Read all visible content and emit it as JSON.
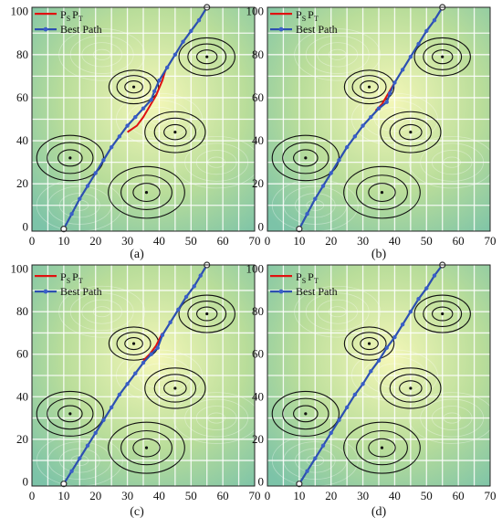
{
  "colors": {
    "bg_light": "#f4f7b8",
    "bg_mid": "#b9dd9a",
    "bg_dark": "#7cc3a8",
    "grid": "#ffffff",
    "threat": "#111111",
    "ps_pt_line": "#e01010",
    "best_path_line": "#2c4fb0",
    "best_path_marker": "#3a5fc8"
  },
  "legend": {
    "ps_pt_sub_s": "S",
    "ps_pt_sub_t": "T",
    "ps_pt_prefix": "P",
    "best_path": "Best Path"
  },
  "chart_data": [
    {
      "type": "line",
      "panel_label": "(a)",
      "xlim": [
        0,
        70
      ],
      "ylim": [
        -2,
        102
      ],
      "x_ticks": [
        0,
        10,
        20,
        30,
        40,
        50,
        60,
        70
      ],
      "y_ticks": [
        0,
        20,
        40,
        60,
        80,
        100
      ],
      "grid": true,
      "legend_position": "top-left",
      "threats": [
        {
          "center": [
            12,
            32
          ],
          "radii": [
            3.8,
            7.2,
            10.5
          ]
        },
        {
          "center": [
            32,
            65
          ],
          "radii": [
            2.8,
            5.3,
            7.8
          ]
        },
        {
          "center": [
            45,
            44
          ],
          "radii": [
            3.5,
            6.5,
            9.5
          ]
        },
        {
          "center": [
            55,
            79
          ],
          "radii": [
            3.2,
            6,
            8.8
          ]
        },
        {
          "center": [
            36,
            16
          ],
          "radii": [
            4.2,
            8,
            12
          ]
        }
      ],
      "start": [
        10,
        -1
      ],
      "goal": [
        55,
        102
      ],
      "series": [
        {
          "name": "PS PT",
          "x": [
            30,
            33,
            35,
            37,
            39,
            41,
            42
          ],
          "y": [
            44,
            47,
            51,
            56,
            61,
            68,
            73
          ]
        },
        {
          "name": "Best Path",
          "x": [
            10,
            12.5,
            15,
            17.5,
            20,
            22.5,
            25,
            27.5,
            30,
            32.5,
            35,
            37.5,
            38.5,
            40,
            42.5,
            45,
            47.5,
            50,
            52.5,
            55
          ],
          "y": [
            -1,
            6,
            13,
            19,
            25,
            31,
            37,
            42,
            47,
            51,
            55,
            59,
            63,
            68,
            74,
            80,
            86,
            91,
            96,
            102
          ]
        }
      ]
    },
    {
      "type": "line",
      "panel_label": "(b)",
      "xlim": [
        0,
        70
      ],
      "ylim": [
        -2,
        102
      ],
      "x_ticks": [
        0,
        10,
        20,
        30,
        40,
        50,
        60,
        70
      ],
      "y_ticks": [
        0,
        20,
        40,
        60,
        80,
        100
      ],
      "grid": true,
      "legend_position": "top-left",
      "threats": [
        {
          "center": [
            12,
            32
          ],
          "radii": [
            3.8,
            7.2,
            10.5
          ]
        },
        {
          "center": [
            32,
            65
          ],
          "radii": [
            2.8,
            5.3,
            7.8
          ]
        },
        {
          "center": [
            45,
            44
          ],
          "radii": [
            3.5,
            6.5,
            9.5
          ]
        },
        {
          "center": [
            55,
            79
          ],
          "radii": [
            3.2,
            6,
            8.8
          ]
        },
        {
          "center": [
            36,
            16
          ],
          "radii": [
            4.2,
            8,
            12
          ]
        }
      ],
      "start": [
        10,
        -1
      ],
      "goal": [
        55,
        102
      ],
      "series": [
        {
          "name": "PS PT",
          "x": [
            34,
            36,
            38,
            40
          ],
          "y": [
            54,
            57,
            62,
            67
          ]
        },
        {
          "name": "Best Path",
          "x": [
            10,
            12.5,
            15,
            17.5,
            20,
            22.5,
            25,
            27.5,
            30,
            32.5,
            35,
            37.5,
            38.5,
            40,
            42.5,
            45,
            47.5,
            50,
            52.5,
            55
          ],
          "y": [
            -1,
            6,
            13,
            19,
            25,
            31,
            37,
            42,
            47,
            51,
            55,
            58,
            62,
            67,
            73,
            79,
            85,
            91,
            96,
            102
          ]
        }
      ]
    },
    {
      "type": "line",
      "panel_label": "(c)",
      "xlim": [
        0,
        70
      ],
      "ylim": [
        -2,
        102
      ],
      "x_ticks": [
        0,
        10,
        20,
        30,
        40,
        50,
        60,
        70
      ],
      "y_ticks": [
        0,
        20,
        40,
        60,
        80,
        100
      ],
      "grid": true,
      "legend_position": "top-left",
      "threats": [
        {
          "center": [
            12,
            32
          ],
          "radii": [
            3.8,
            7.2,
            10.5
          ]
        },
        {
          "center": [
            32,
            65
          ],
          "radii": [
            2.8,
            5.3,
            7.8
          ]
        },
        {
          "center": [
            45,
            44
          ],
          "radii": [
            3.5,
            6.5,
            9.5
          ]
        },
        {
          "center": [
            55,
            79
          ],
          "radii": [
            3.2,
            6,
            8.8
          ]
        },
        {
          "center": [
            36,
            16
          ],
          "radii": [
            4.2,
            8,
            12
          ]
        }
      ],
      "start": [
        10,
        -1
      ],
      "goal": [
        55,
        102
      ],
      "series": [
        {
          "name": "PS PT",
          "x": [
            35,
            37,
            39,
            41
          ],
          "y": [
            57,
            60,
            64,
            70
          ]
        },
        {
          "name": "Best Path",
          "x": [
            10,
            12.5,
            15,
            17.5,
            20,
            22.5,
            25,
            27.5,
            30,
            32.5,
            35,
            37.5,
            39.5,
            41,
            43.5,
            46,
            48.5,
            51,
            53,
            55
          ],
          "y": [
            -1,
            5,
            11,
            17,
            23,
            29,
            35,
            41,
            46,
            51,
            56,
            60,
            63,
            69,
            75,
            81,
            87,
            92,
            97,
            102
          ]
        }
      ]
    },
    {
      "type": "line",
      "panel_label": "(d)",
      "xlim": [
        0,
        70
      ],
      "ylim": [
        -2,
        102
      ],
      "x_ticks": [
        0,
        10,
        20,
        30,
        40,
        50,
        60,
        70
      ],
      "y_ticks": [
        0,
        20,
        40,
        60,
        80,
        100
      ],
      "grid": true,
      "legend_position": "top-left",
      "threats": [
        {
          "center": [
            12,
            32
          ],
          "radii": [
            3.8,
            7.2,
            10.5
          ]
        },
        {
          "center": [
            32,
            65
          ],
          "radii": [
            2.8,
            5.3,
            7.8
          ]
        },
        {
          "center": [
            45,
            44
          ],
          "radii": [
            3.5,
            6.5,
            9.5
          ]
        },
        {
          "center": [
            55,
            79
          ],
          "radii": [
            3.2,
            6,
            8.8
          ]
        },
        {
          "center": [
            36,
            16
          ],
          "radii": [
            4.2,
            8,
            12
          ]
        }
      ],
      "start": [
        10,
        -1
      ],
      "goal": [
        55,
        102
      ],
      "series": [
        {
          "name": "PS PT",
          "x": [],
          "y": []
        },
        {
          "name": "Best Path",
          "x": [
            10,
            12.5,
            15,
            17.5,
            20,
            22.5,
            25,
            27.5,
            30,
            32.5,
            35,
            37.5,
            40,
            42.5,
            45,
            47.5,
            50,
            52.5,
            55
          ],
          "y": [
            -1,
            5,
            11,
            17,
            23,
            29,
            35,
            41,
            46,
            52,
            57,
            63,
            68,
            74,
            80,
            86,
            91,
            97,
            102
          ]
        }
      ]
    }
  ]
}
